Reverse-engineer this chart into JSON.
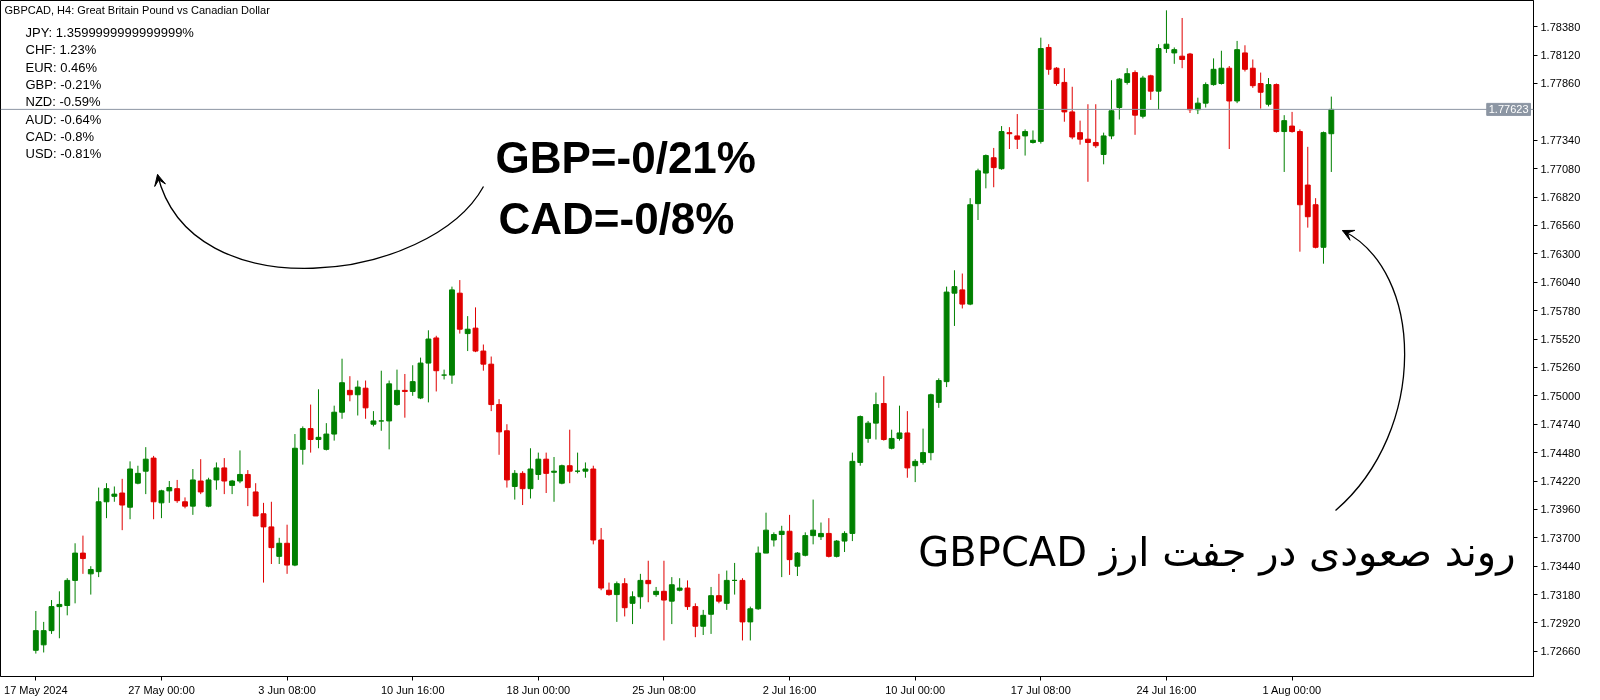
{
  "chart_data": {
    "type": "candlestick",
    "title": "GBPCAD, H4:  Great Britain Pound vs Canadian Dollar",
    "annotations": [
      "JPY: 1.3599999999999999%",
      "CHF: 1.23%",
      "EUR: 0.46%",
      "GBP: -0.21%",
      "NZD: -0.59%",
      "AUD: -0.64%",
      "CAD: -0.8%",
      "USD: -0.81%",
      "GBP=-0/21%",
      "CAD=-0/8%",
      "روند صعودی در جفت ارز GBPCAD"
    ],
    "categories": [
      "17 May 2024",
      null,
      null,
      null,
      null,
      null,
      null,
      null,
      null,
      null,
      null,
      null,
      null,
      null,
      null,
      null,
      "27 May 00:00",
      null,
      null,
      null,
      null,
      null,
      null,
      null,
      null,
      null,
      null,
      null,
      null,
      null,
      null,
      null,
      "3 Jun 08:00",
      null,
      null,
      null,
      null,
      null,
      null,
      null,
      null,
      null,
      null,
      null,
      null,
      null,
      null,
      null,
      "10 Jun 16:00",
      null,
      null,
      null,
      null,
      null,
      null,
      null,
      null,
      null,
      null,
      null,
      null,
      null,
      null,
      null,
      "18 Jun 00:00",
      null,
      null,
      null,
      null,
      null,
      null,
      null,
      null,
      null,
      null,
      null,
      null,
      null,
      null,
      null,
      "25 Jun 08:00",
      null,
      null,
      null,
      null,
      null,
      null,
      null,
      null,
      null,
      null,
      null,
      null,
      null,
      null,
      null,
      "2 Jul 16:00",
      null,
      null,
      null,
      null,
      null,
      null,
      null,
      null,
      null,
      null,
      null,
      null,
      null,
      null,
      null,
      "10 Jul 00:00",
      null,
      null,
      null,
      null,
      null,
      null,
      null,
      null,
      null,
      null,
      null,
      null,
      null,
      null,
      null,
      "17 Jul 08:00",
      null,
      null,
      null,
      null,
      null,
      null,
      null,
      null,
      null,
      null,
      null,
      null,
      null,
      null,
      null,
      "24 Jul 16:00",
      null,
      null,
      null,
      null,
      null,
      null,
      null,
      null,
      null,
      null,
      null,
      null,
      null,
      null,
      null,
      "1 Aug 00:00",
      null,
      null,
      null,
      null,
      null,
      null,
      null,
      null,
      null,
      null,
      null,
      null,
      null,
      null,
      null,
      null,
      null,
      null,
      null,
      null,
      null,
      null,
      null,
      null,
      null,
      null,
      null,
      null,
      null,
      null
    ],
    "ohlc": [
      [
        1.7267,
        1.7303,
        1.7264,
        1.7285
      ],
      [
        1.7272,
        1.7293,
        1.7265,
        1.7285
      ],
      [
        1.7285,
        1.7313,
        1.7282,
        1.7307
      ],
      [
        1.7307,
        1.7321,
        1.7278,
        1.7309
      ],
      [
        1.7308,
        1.7333,
        1.7299,
        1.7331
      ],
      [
        1.7331,
        1.7365,
        1.731,
        1.7356
      ],
      [
        1.7356,
        1.7372,
        1.7337,
        1.7351
      ],
      [
        1.7337,
        1.7344,
        1.7318,
        1.7341
      ],
      [
        1.7339,
        1.7416,
        1.7334,
        1.7403
      ],
      [
        1.7403,
        1.742,
        1.7388,
        1.7415
      ],
      [
        1.7408,
        1.7417,
        1.7403,
        1.741
      ],
      [
        1.7411,
        1.7424,
        1.7377,
        1.74
      ],
      [
        1.7398,
        1.744,
        1.7387,
        1.7433
      ],
      [
        1.742,
        1.7436,
        1.7419,
        1.7429
      ],
      [
        1.7431,
        1.7453,
        1.741,
        1.7442
      ],
      [
        1.7443,
        1.7445,
        1.7387,
        1.7403
      ],
      [
        1.7402,
        1.7414,
        1.7388,
        1.7413
      ],
      [
        1.7413,
        1.7422,
        1.7402,
        1.7416
      ],
      [
        1.7415,
        1.7423,
        1.7402,
        1.7404
      ],
      [
        1.7403,
        1.7407,
        1.7397,
        1.7399
      ],
      [
        1.7399,
        1.7433,
        1.7391,
        1.7423
      ],
      [
        1.7422,
        1.7442,
        1.741,
        1.7412
      ],
      [
        1.7399,
        1.7425,
        1.7398,
        1.7423
      ],
      [
        1.7423,
        1.7439,
        1.7414,
        1.7434
      ],
      [
        1.7434,
        1.7443,
        1.741,
        1.7422
      ],
      [
        1.7418,
        1.7423,
        1.741,
        1.7422
      ],
      [
        1.7422,
        1.745,
        1.742,
        1.7428
      ],
      [
        1.7428,
        1.7432,
        1.7399,
        1.7416
      ],
      [
        1.7412,
        1.742,
        1.739,
        1.739
      ],
      [
        1.7392,
        1.7402,
        1.7329,
        1.738
      ],
      [
        1.738,
        1.7403,
        1.7346,
        1.7361
      ],
      [
        1.7353,
        1.737,
        1.7346,
        1.7365
      ],
      [
        1.7365,
        1.7382,
        1.7337,
        1.7345
      ],
      [
        1.7345,
        1.7465,
        1.7344,
        1.7452
      ],
      [
        1.7451,
        1.7472,
        1.7437,
        1.747
      ],
      [
        1.747,
        1.7492,
        1.7448,
        1.746
      ],
      [
        1.746,
        1.7506,
        1.7452,
        1.7462
      ],
      [
        1.7451,
        1.7475,
        1.745,
        1.7465
      ],
      [
        1.7465,
        1.7491,
        1.7459,
        1.7485
      ],
      [
        1.7485,
        1.7534,
        1.7479,
        1.7512
      ],
      [
        1.7505,
        1.7518,
        1.7495,
        1.7501
      ],
      [
        1.7501,
        1.7514,
        1.7482,
        1.7508
      ],
      [
        1.7507,
        1.7514,
        1.7479,
        1.7489
      ],
      [
        1.7474,
        1.7486,
        1.7472,
        1.7477
      ],
      [
        1.7477,
        1.7523,
        1.7468,
        1.7477
      ],
      [
        1.7477,
        1.7514,
        1.7451,
        1.7511
      ],
      [
        1.7492,
        1.7524,
        1.7491,
        1.7505
      ],
      [
        1.7505,
        1.752,
        1.748,
        1.7504
      ],
      [
        1.7504,
        1.7528,
        1.75,
        1.7513
      ],
      [
        1.7498,
        1.7535,
        1.7497,
        1.753
      ],
      [
        1.753,
        1.756,
        1.7494,
        1.7552
      ],
      [
        1.7553,
        1.7555,
        1.7504,
        1.7523
      ],
      [
        1.7519,
        1.7524,
        1.7515,
        1.7519
      ],
      [
        1.7519,
        1.76,
        1.7511,
        1.7597
      ],
      [
        1.7594,
        1.7606,
        1.7557,
        1.7561
      ],
      [
        1.7557,
        1.7573,
        1.7541,
        1.7561
      ],
      [
        1.7562,
        1.7581,
        1.754,
        1.7541
      ],
      [
        1.7541,
        1.7547,
        1.7523,
        1.7529
      ],
      [
        1.7529,
        1.7536,
        1.7486,
        1.7492
      ],
      [
        1.7492,
        1.7497,
        1.7446,
        1.7467
      ],
      [
        1.7468,
        1.7474,
        1.7416,
        1.7423
      ],
      [
        1.7417,
        1.7432,
        1.7405,
        1.7429
      ],
      [
        1.7429,
        1.7431,
        1.74,
        1.7415
      ],
      [
        1.7415,
        1.7452,
        1.7406,
        1.7433
      ],
      [
        1.7428,
        1.7448,
        1.7423,
        1.7442
      ],
      [
        1.7442,
        1.7448,
        1.7411,
        1.7429
      ],
      [
        1.743,
        1.7444,
        1.7403,
        1.7431
      ],
      [
        1.742,
        1.7437,
        1.7419,
        1.7436
      ],
      [
        1.7436,
        1.7469,
        1.742,
        1.7431
      ],
      [
        1.7431,
        1.7448,
        1.7429,
        1.7431
      ],
      [
        1.7431,
        1.7439,
        1.7425,
        1.7433
      ],
      [
        1.7433,
        1.7436,
        1.7364,
        1.7368
      ],
      [
        1.7368,
        1.7379,
        1.7322,
        1.7324
      ],
      [
        1.7322,
        1.7329,
        1.7317,
        1.7318
      ],
      [
        1.7318,
        1.733,
        1.7293,
        1.7328
      ],
      [
        1.7328,
        1.7333,
        1.7298,
        1.7306
      ],
      [
        1.731,
        1.7321,
        1.7291,
        1.7316
      ],
      [
        1.7316,
        1.7337,
        1.7305,
        1.7331
      ],
      [
        1.7331,
        1.7349,
        1.7311,
        1.7328
      ],
      [
        1.7318,
        1.7325,
        1.7316,
        1.7321
      ],
      [
        1.7321,
        1.7349,
        1.7276,
        1.7313
      ],
      [
        1.7312,
        1.7334,
        1.7291,
        1.7327
      ],
      [
        1.7322,
        1.7333,
        1.7321,
        1.7324
      ],
      [
        1.7324,
        1.7331,
        1.7304,
        1.7307
      ],
      [
        1.7307,
        1.731,
        1.7279,
        1.7289
      ],
      [
        1.7289,
        1.7304,
        1.7281,
        1.7299
      ],
      [
        1.73,
        1.7325,
        1.7282,
        1.7317
      ],
      [
        1.7317,
        1.7337,
        1.731,
        1.7312
      ],
      [
        1.731,
        1.734,
        1.7304,
        1.7331
      ],
      [
        1.7331,
        1.7347,
        1.7318,
        1.7331
      ],
      [
        1.7331,
        1.7333,
        1.7276,
        1.7293
      ],
      [
        1.7293,
        1.7307,
        1.7276,
        1.7305
      ],
      [
        1.7305,
        1.7362,
        1.7304,
        1.7356
      ],
      [
        1.7356,
        1.7393,
        1.7356,
        1.7377
      ],
      [
        1.7368,
        1.7375,
        1.7362,
        1.7373
      ],
      [
        1.7373,
        1.7381,
        1.7334,
        1.7376
      ],
      [
        1.7376,
        1.7391,
        1.7336,
        1.735
      ],
      [
        1.7344,
        1.7357,
        1.7335,
        1.7356
      ],
      [
        1.7354,
        1.7375,
        1.7353,
        1.7372
      ],
      [
        1.7372,
        1.7405,
        1.7364,
        1.7377
      ],
      [
        1.7371,
        1.7384,
        1.7368,
        1.7374
      ],
      [
        1.7374,
        1.7388,
        1.7352,
        1.7353
      ],
      [
        1.7353,
        1.7368,
        1.7352,
        1.7367
      ],
      [
        1.7367,
        1.7376,
        1.7357,
        1.7374
      ],
      [
        1.7374,
        1.7448,
        1.7367,
        1.744
      ],
      [
        1.7439,
        1.7482,
        1.7436,
        1.7481
      ],
      [
        1.7461,
        1.7477,
        1.7457,
        1.7475
      ],
      [
        1.7475,
        1.7503,
        1.746,
        1.7492
      ],
      [
        1.7493,
        1.7518,
        1.7459,
        1.746
      ],
      [
        1.7452,
        1.7469,
        1.7451,
        1.7461
      ],
      [
        1.7461,
        1.7491,
        1.7459,
        1.7466
      ],
      [
        1.7466,
        1.7486,
        1.7425,
        1.7434
      ],
      [
        1.7436,
        1.7442,
        1.7421,
        1.744
      ],
      [
        1.7439,
        1.747,
        1.7437,
        1.7448
      ],
      [
        1.7448,
        1.7502,
        1.7441,
        1.7501
      ],
      [
        1.7494,
        1.7516,
        1.7489,
        1.7514
      ],
      [
        1.7513,
        1.76,
        1.7508,
        1.7595
      ],
      [
        1.7594,
        1.7615,
        1.7564,
        1.76
      ],
      [
        1.7597,
        1.7612,
        1.758,
        1.7584
      ],
      [
        1.7584,
        1.7681,
        1.7583,
        1.7675
      ],
      [
        1.7676,
        1.7708,
        1.7661,
        1.7706
      ],
      [
        1.7704,
        1.7721,
        1.769,
        1.772
      ],
      [
        1.7718,
        1.7727,
        1.7691,
        1.7709
      ],
      [
        1.7708,
        1.7747,
        1.7707,
        1.7742
      ],
      [
        1.7741,
        1.7746,
        1.7726,
        1.774
      ],
      [
        1.7738,
        1.7758,
        1.7726,
        1.7735
      ],
      [
        1.7738,
        1.7744,
        1.772,
        1.7742
      ],
      [
        1.7732,
        1.7743,
        1.7731,
        1.7734
      ],
      [
        1.7733,
        1.7828,
        1.7731,
        1.7818
      ],
      [
        1.7819,
        1.7822,
        1.7794,
        1.7799
      ],
      [
        1.78,
        1.7801,
        1.7784,
        1.7786
      ],
      [
        1.7787,
        1.78,
        1.7751,
        1.776
      ],
      [
        1.776,
        1.7783,
        1.7735,
        1.7737
      ],
      [
        1.7741,
        1.7752,
        1.773,
        1.7735
      ],
      [
        1.7735,
        1.7767,
        1.7696,
        1.7732
      ],
      [
        1.7732,
        1.7767,
        1.7727,
        1.7729
      ],
      [
        1.7721,
        1.7741,
        1.7712,
        1.7738
      ],
      [
        1.7738,
        1.7789,
        1.7735,
        1.7761
      ],
      [
        1.7764,
        1.7791,
        1.7753,
        1.779
      ],
      [
        1.7787,
        1.78,
        1.7785,
        1.7795
      ],
      [
        1.7796,
        1.7798,
        1.7739,
        1.7757
      ],
      [
        1.7756,
        1.7793,
        1.7754,
        1.7791
      ],
      [
        1.7793,
        1.7794,
        1.7771,
        1.7779
      ],
      [
        1.7779,
        1.7822,
        1.7762,
        1.7818
      ],
      [
        1.7818,
        1.7853,
        1.7814,
        1.7822
      ],
      [
        1.7814,
        1.7819,
        1.7804,
        1.7817
      ],
      [
        1.7811,
        1.7846,
        1.78,
        1.7808
      ],
      [
        1.7813,
        1.7814,
        1.7759,
        1.7762
      ],
      [
        1.7762,
        1.7773,
        1.7758,
        1.7768
      ],
      [
        1.7768,
        1.7787,
        1.7764,
        1.7785
      ],
      [
        1.7785,
        1.7809,
        1.7784,
        1.7799
      ],
      [
        1.7786,
        1.7816,
        1.7785,
        1.78
      ],
      [
        1.78,
        1.7802,
        1.7726,
        1.777
      ],
      [
        1.777,
        1.7825,
        1.7768,
        1.7817
      ],
      [
        1.7814,
        1.7821,
        1.7797,
        1.7799
      ],
      [
        1.78,
        1.7808,
        1.7782,
        1.7784
      ],
      [
        1.7786,
        1.7796,
        1.7763,
        1.7778
      ],
      [
        1.7767,
        1.7791,
        1.7765,
        1.7785
      ],
      [
        1.7785,
        1.7786,
        1.7741,
        1.7742
      ],
      [
        1.7742,
        1.7757,
        1.7705,
        1.7752
      ],
      [
        1.7747,
        1.776,
        1.7741,
        1.7742
      ],
      [
        1.7742,
        1.7744,
        1.7632,
        1.7675
      ],
      [
        1.7693,
        1.7728,
        1.7654,
        1.7664
      ],
      [
        1.7675,
        1.7681,
        1.7635,
        1.7636
      ],
      [
        1.7636,
        1.7742,
        1.7621,
        1.7741
      ],
      [
        1.774,
        1.7774,
        1.7705,
        1.77623
      ],
      null,
      null,
      null,
      null,
      null,
      null,
      null,
      null,
      null,
      null,
      null,
      null,
      null,
      null,
      null,
      null,
      null,
      null,
      null,
      null,
      null,
      null,
      null,
      null,
      null
    ],
    "colors": [
      "#008000",
      "#008000",
      "#008000",
      "#008000",
      "#008000",
      "#008000",
      "#e00000",
      "#008000",
      "#008000",
      "#008000",
      "#008000",
      "#e00000",
      "#008000",
      "#008000",
      "#008000",
      "#e00000",
      "#008000",
      "#008000",
      "#e00000",
      "#e00000",
      "#008000",
      "#e00000",
      "#008000",
      "#008000",
      "#e00000",
      "#008000",
      "#008000",
      "#e00000",
      "#e00000",
      "#e00000",
      "#e00000",
      "#008000",
      "#e00000",
      "#008000",
      "#008000",
      "#e00000",
      "#008000",
      "#008000",
      "#008000",
      "#008000",
      "#e00000",
      "#008000",
      "#e00000",
      "#008000",
      "#008000",
      "#008000",
      "#008000",
      "#e00000",
      "#008000",
      "#008000",
      "#008000",
      "#e00000",
      "#008000",
      "#008000",
      "#e00000",
      "#008000",
      "#e00000",
      "#e00000",
      "#e00000",
      "#e00000",
      "#e00000",
      "#008000",
      "#e00000",
      "#008000",
      "#008000",
      "#e00000",
      "#008000",
      "#008000",
      "#e00000",
      "#008000",
      "#008000",
      "#e00000",
      "#e00000",
      "#e00000",
      "#008000",
      "#e00000",
      "#008000",
      "#008000",
      "#e00000",
      "#008000",
      "#e00000",
      "#008000",
      "#008000",
      "#e00000",
      "#e00000",
      "#008000",
      "#008000",
      "#e00000",
      "#008000",
      "#008000",
      "#e00000",
      "#008000",
      "#008000",
      "#008000",
      "#008000",
      "#008000",
      "#e00000",
      "#008000",
      "#008000",
      "#008000",
      "#008000",
      "#e00000",
      "#008000",
      "#008000",
      "#008000",
      "#008000",
      "#008000",
      "#008000",
      "#e00000",
      "#008000",
      "#008000",
      "#e00000",
      "#008000",
      "#008000",
      "#008000",
      "#008000",
      "#008000",
      "#008000",
      "#e00000",
      "#008000",
      "#008000",
      "#008000",
      "#e00000",
      "#008000",
      "#e00000",
      "#e00000",
      "#008000",
      "#008000",
      "#008000",
      "#e00000",
      "#e00000",
      "#e00000",
      "#e00000",
      "#e00000",
      "#e00000",
      "#e00000",
      "#008000",
      "#008000",
      "#008000",
      "#008000",
      "#e00000",
      "#008000",
      "#e00000",
      "#008000",
      "#008000",
      "#008000",
      "#e00000",
      "#e00000",
      "#008000",
      "#008000",
      "#008000",
      "#008000",
      "#e00000",
      "#008000",
      "#e00000",
      "#e00000",
      "#e00000",
      "#008000",
      "#e00000",
      "#008000",
      "#e00000",
      "#e00000",
      "#e00000",
      "#e00000",
      "#008000",
      "#008000",
      null,
      null,
      null,
      null,
      null,
      null,
      null,
      null,
      null,
      null,
      null,
      null,
      null,
      null,
      null,
      null,
      null,
      null,
      null,
      null,
      null,
      null,
      null,
      null,
      null
    ],
    "ylim": [
      1.7243,
      1.7862
    ],
    "yticks": [
      {
        "value": 1.7266,
        "label": "1.72660"
      },
      {
        "value": 1.7292,
        "label": "1.72920"
      },
      {
        "value": 1.7318,
        "label": "1.73180"
      },
      {
        "value": 1.7344,
        "label": "1.73440"
      },
      {
        "value": 1.737,
        "label": "1.73700"
      },
      {
        "value": 1.7396,
        "label": "1.73960"
      },
      {
        "value": 1.7422,
        "label": "1.74220"
      },
      {
        "value": 1.7448,
        "label": "1.74480"
      },
      {
        "value": 1.7474,
        "label": "1.74740"
      },
      {
        "value": 1.75,
        "label": "1.75000"
      },
      {
        "value": 1.7526,
        "label": "1.75260"
      },
      {
        "value": 1.7552,
        "label": "1.75520"
      },
      {
        "value": 1.7578,
        "label": "1.75780"
      },
      {
        "value": 1.7604,
        "label": "1.76040"
      },
      {
        "value": 1.763,
        "label": "1.76300"
      },
      {
        "value": 1.7656,
        "label": "1.76560"
      },
      {
        "value": 1.7682,
        "label": "1.76820"
      },
      {
        "value": 1.7708,
        "label": "1.77080"
      },
      {
        "value": 1.7734,
        "label": "1.77340"
      },
      {
        "value": 1.7786,
        "label": "1.77860"
      },
      {
        "value": 1.7812,
        "label": "1.78120"
      },
      {
        "value": 1.7838,
        "label": "1.78380"
      }
    ],
    "ref_lines": [
      {
        "axis": "y",
        "value": 1.77623,
        "label": "1.77623",
        "color": "#8c96a3"
      }
    ]
  }
}
